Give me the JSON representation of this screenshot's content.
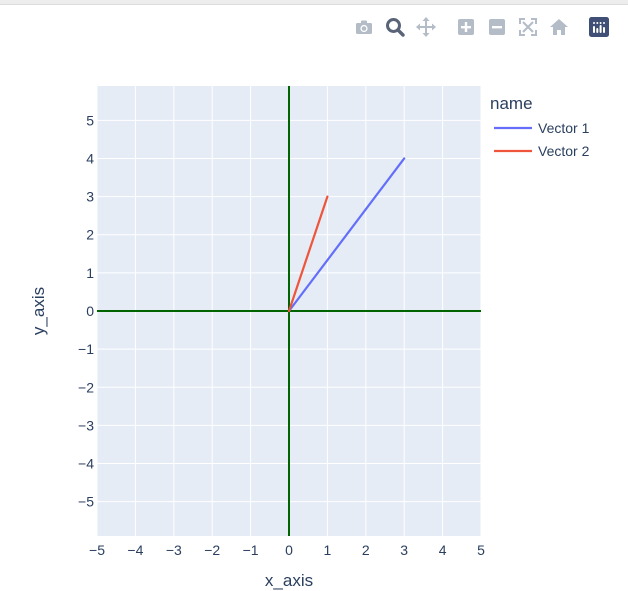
{
  "modebar": {
    "buttons": [
      {
        "icon": "camera-icon",
        "title": "Download plot as a png"
      },
      {
        "icon": "zoom-icon",
        "title": "Zoom"
      },
      {
        "icon": "pan-icon",
        "title": "Pan"
      },
      {
        "icon": "zoom-in-icon",
        "title": "Zoom in"
      },
      {
        "icon": "zoom-out-icon",
        "title": "Zoom out"
      },
      {
        "icon": "autoscale-icon",
        "title": "Autoscale"
      },
      {
        "icon": "home-icon",
        "title": "Reset axes"
      },
      {
        "icon": "plotly-logo-icon",
        "title": "Produced with Plotly"
      }
    ]
  },
  "chart_data": {
    "type": "line",
    "title": "",
    "xlabel": "x_axis",
    "ylabel": "y_axis",
    "xlim": [
      -5,
      5
    ],
    "ylim": [
      -5.9,
      5.9
    ],
    "xticks": [
      -5,
      -4,
      -3,
      -2,
      -1,
      0,
      1,
      2,
      3,
      4,
      5
    ],
    "yticks": [
      -5,
      -4,
      -3,
      -2,
      -1,
      0,
      1,
      2,
      3,
      4,
      5
    ],
    "legend_title": "name",
    "legend_position": "right",
    "grid": true,
    "colors": {
      "plot_bg": "#e5ecf6",
      "grid": "#ffffff",
      "axis_lines": "#006400",
      "text": "#2a3f5f"
    },
    "series": [
      {
        "name": "Vector 1",
        "color": "#636efa",
        "x": [
          0,
          3
        ],
        "y": [
          0,
          4
        ]
      },
      {
        "name": "Vector 2",
        "color": "#ef553b",
        "x": [
          0,
          1
        ],
        "y": [
          0,
          3
        ]
      }
    ]
  }
}
